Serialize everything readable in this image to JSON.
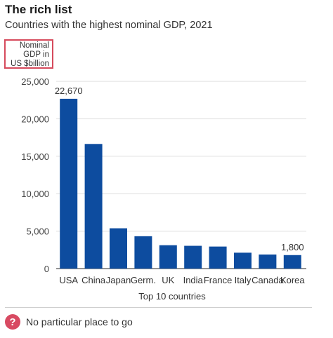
{
  "header": {
    "title": "The rich list",
    "subtitle": "Countries with the highest nominal GDP, 2021"
  },
  "y_axis_label_lines": [
    "Nominal",
    "GDP in",
    "US $billion"
  ],
  "footer": {
    "source_text": "No particular place to go",
    "icon": "question-icon",
    "icon_glyph": "?"
  },
  "colors": {
    "bar": "#0d4c9f",
    "label_box_border": "#d64a5c",
    "icon_bg": "#d84a62"
  },
  "chart_data": {
    "type": "bar",
    "title": "The rich list",
    "subtitle": "Countries with the highest nominal GDP, 2021",
    "xlabel": "Top 10 countries",
    "ylabel": "Nominal GDP in US $billion",
    "categories": [
      "USA",
      "China",
      "Japan",
      "Germ.",
      "UK",
      "India",
      "France",
      "Italy",
      "Canada",
      "Korea"
    ],
    "values": [
      22670,
      16640,
      5380,
      4320,
      3120,
      3040,
      2940,
      2120,
      1880,
      1800
    ],
    "ylim": [
      0,
      25000
    ],
    "yticks": [
      0,
      5000,
      10000,
      15000,
      20000,
      25000
    ],
    "ytick_labels": [
      "0",
      "5,000",
      "10,000",
      "15,000",
      "20,000",
      "25,000"
    ],
    "data_labels": [
      {
        "index": 0,
        "text": "22,670"
      },
      {
        "index": 9,
        "text": "1,800"
      }
    ],
    "grid": "horizontal",
    "legend": "none"
  }
}
